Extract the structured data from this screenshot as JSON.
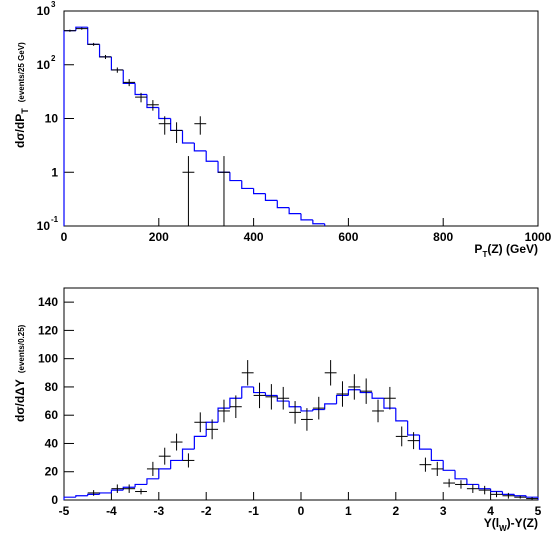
{
  "chart_data": [
    {
      "type": "histogram",
      "log_y": true,
      "ylabel": [
        "dσ/dP",
        "T",
        "(events/25 GeV)"
      ],
      "xlabel": [
        "P",
        "T",
        "(Z)  (GeV)"
      ],
      "xlim": [
        0,
        1000
      ],
      "xticks": [
        0,
        200,
        400,
        600,
        800,
        1000
      ],
      "ylim": [
        0.1,
        1000
      ],
      "yticks": [
        {
          "value": 0.1,
          "label": "10",
          "sup": "-1"
        },
        1,
        10,
        {
          "value": 100,
          "label": "10",
          "sup": "2"
        },
        {
          "value": 1000,
          "label": "10",
          "sup": "3"
        }
      ],
      "bins": [
        0,
        25,
        50,
        75,
        100,
        125,
        150,
        175,
        200,
        225,
        250,
        275,
        300,
        325,
        350,
        375,
        400,
        425,
        450,
        475,
        500,
        525,
        550
      ],
      "values": [
        430,
        500,
        240,
        140,
        80,
        45,
        28,
        16,
        10,
        6,
        3.5,
        2.5,
        1.6,
        1.0,
        0.7,
        0.5,
        0.4,
        0.3,
        0.22,
        0.17,
        0.13,
        0.11
      ],
      "color": "#0000ff",
      "points": {
        "x": [
          12.5,
          37.5,
          62.5,
          87.5,
          112.5,
          137.5,
          162.5,
          187.5,
          212.5,
          237.5,
          262.5,
          287.5,
          337.5
        ],
        "values": [
          430,
          470,
          240,
          140,
          80,
          47,
          25,
          18,
          8,
          6,
          1,
          8,
          1
        ],
        "errors": [
          20,
          22,
          15,
          12,
          9,
          7,
          5,
          4,
          3,
          2.5,
          1,
          3,
          1
        ]
      }
    },
    {
      "type": "histogram",
      "log_y": false,
      "ylabel": [
        "dσ/dΔY",
        "",
        "(events/0.25)"
      ],
      "xlabel": [
        "Y(l",
        "W",
        ")-Y(Z)"
      ],
      "xlim": [
        -5,
        5
      ],
      "xticks": [
        -5,
        -4,
        -3,
        -2,
        -1,
        0,
        1,
        2,
        3,
        4,
        5
      ],
      "ylim": [
        0,
        150
      ],
      "yticks": [
        0,
        20,
        40,
        60,
        80,
        100,
        120,
        140
      ],
      "bins": [
        -5,
        -4.75,
        -4.5,
        -4.25,
        -4,
        -3.75,
        -3.5,
        -3.25,
        -3,
        -2.75,
        -2.5,
        -2.25,
        -2,
        -1.75,
        -1.5,
        -1.25,
        -1,
        -0.75,
        -0.5,
        -0.25,
        0,
        0.25,
        0.5,
        0.75,
        1,
        1.25,
        1.5,
        1.75,
        2,
        2.25,
        2.5,
        2.75,
        3,
        3.25,
        3.5,
        3.75,
        4,
        4.25,
        4.5,
        4.75,
        5
      ],
      "values": [
        2,
        3,
        4,
        5,
        7,
        9,
        11,
        15,
        22,
        28,
        36,
        45,
        55,
        65,
        72,
        80,
        76,
        74,
        70,
        66,
        63,
        64,
        68,
        74,
        78,
        76,
        72,
        65,
        56,
        46,
        36,
        28,
        21,
        15,
        11,
        8,
        6,
        4,
        3,
        2
      ],
      "color": "#0000ff",
      "points": {
        "x": [
          -4.375,
          -3.875,
          -3.625,
          -3.375,
          -3.125,
          -2.875,
          -2.625,
          -2.375,
          -2.125,
          -1.875,
          -1.625,
          -1.375,
          -1.125,
          -0.875,
          -0.625,
          -0.375,
          -0.125,
          0.125,
          0.375,
          0.625,
          0.875,
          1.125,
          1.375,
          1.625,
          1.875,
          2.125,
          2.375,
          2.625,
          2.875,
          3.125,
          3.375,
          3.625,
          3.875,
          4.125,
          4.375,
          4.625,
          4.875
        ],
        "values": [
          5,
          8,
          8,
          6,
          22,
          31,
          41,
          28,
          55,
          50,
          63,
          66,
          90,
          74,
          73,
          72,
          62,
          57,
          65,
          90,
          75,
          80,
          77,
          63,
          72,
          45,
          42,
          25,
          22,
          12,
          11,
          8,
          7,
          4,
          3,
          2,
          1
        ],
        "errors": [
          2,
          3,
          3,
          2,
          5,
          6,
          6,
          5,
          7,
          7,
          8,
          8,
          9,
          9,
          9,
          8,
          8,
          8,
          8,
          9,
          9,
          9,
          9,
          8,
          8,
          7,
          6,
          5,
          5,
          3,
          3,
          3,
          3,
          2,
          2,
          1,
          1
        ]
      }
    }
  ]
}
